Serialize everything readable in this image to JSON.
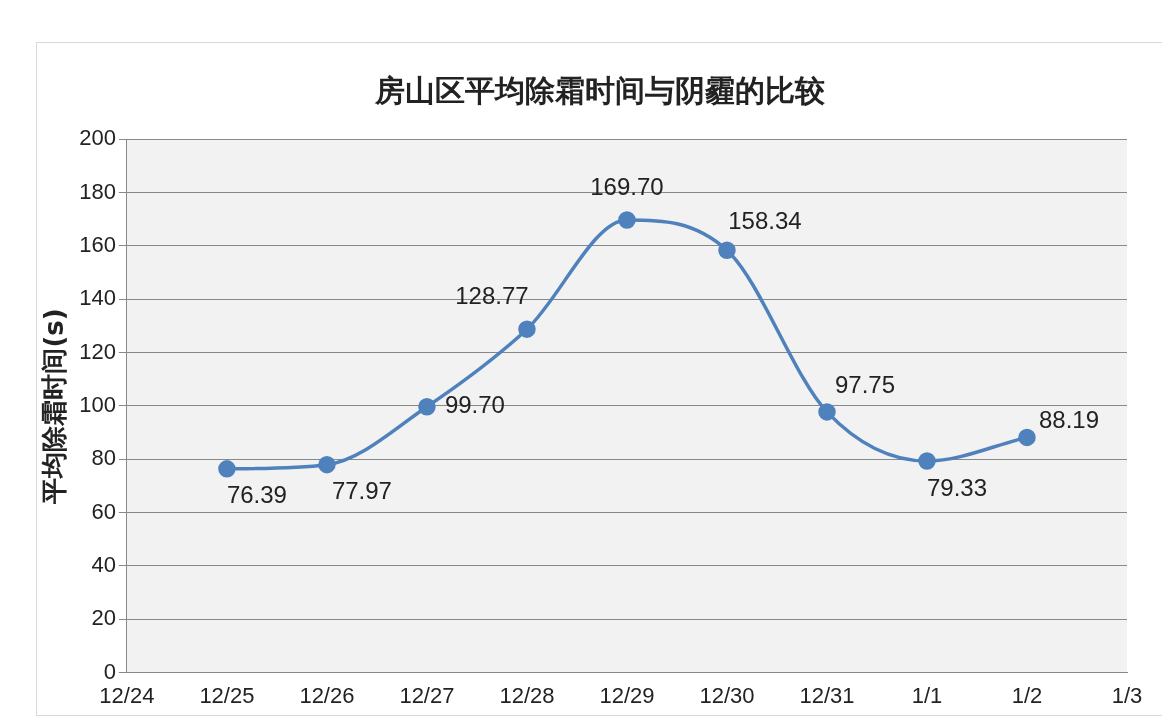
{
  "chart_data": {
    "type": "line",
    "title": "房山区平均除霜时间与阴霾的比较",
    "ylabel": "平均除霜时间(s)",
    "categories": [
      "12/24",
      "12/25",
      "12/26",
      "12/27",
      "12/28",
      "12/29",
      "12/30",
      "12/31",
      "1/1",
      "1/2",
      "1/3"
    ],
    "series": [
      {
        "color": "#4f81bd",
        "values": [
          null,
          76.39,
          77.97,
          99.7,
          128.77,
          169.7,
          158.34,
          97.75,
          79.33,
          88.19,
          null
        ]
      }
    ],
    "value_labels": [
      null,
      "76.39",
      "77.97",
      "99.70",
      "128.77",
      "169.70",
      "158.34",
      "97.75",
      "79.33",
      "88.19",
      null
    ],
    "ylim": [
      0,
      200
    ],
    "yticks": [
      0,
      20,
      40,
      60,
      80,
      100,
      120,
      140,
      160,
      180,
      200
    ],
    "grid": "y",
    "marker": "circle",
    "line_style": "solid",
    "legend": false
  }
}
